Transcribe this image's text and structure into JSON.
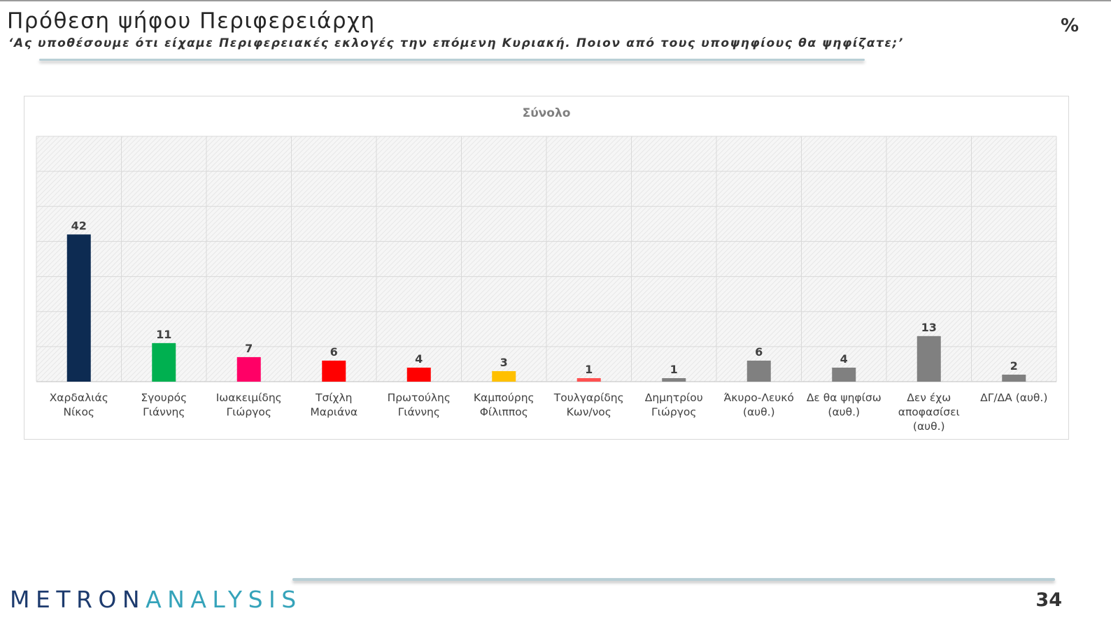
{
  "header": {
    "title": "Πρόθεση ψήφου Περιφερειάρχη",
    "subtitle": "‘Ας υποθέσουμε ότι είχαμε Περιφερειακές εκλογές την επόμενη Κυριακή. Ποιον από τους υποψηφίους θα ψηφίζατε;’",
    "unit": "%"
  },
  "footer": {
    "logo_part1": "METRON",
    "logo_part2": "ANALYSIS",
    "page_number": "34"
  },
  "chart_data": {
    "type": "bar",
    "title": "Σύνολο",
    "xlabel": "",
    "ylabel": "",
    "ylim": [
      0,
      70
    ],
    "grid": true,
    "legend": "none",
    "categories": [
      [
        "Χαρδαλιάς",
        "Νίκος"
      ],
      [
        "Σγουρός",
        "Γιάννης"
      ],
      [
        "Ιωακειμίδης",
        "Γιώργος"
      ],
      [
        "Τσίχλη",
        "Μαριάνα"
      ],
      [
        "Πρωτούλης",
        "Γιάννης"
      ],
      [
        "Καμπούρης",
        "Φίλιππος"
      ],
      [
        "Τουλγαρίδης",
        "Κων/νος"
      ],
      [
        "Δημητρίου",
        "Γιώργος"
      ],
      [
        "Άκυρο-Λευκό",
        "(αυθ.)"
      ],
      [
        "Δε θα ψηφίσω",
        "(αυθ.)"
      ],
      [
        "Δεν έχω",
        "αποφασίσει",
        "(αυθ.)"
      ],
      [
        "ΔΓ/ΔΑ (αυθ.)"
      ]
    ],
    "values": [
      42,
      11,
      7,
      6,
      4,
      3,
      1,
      1,
      6,
      4,
      13,
      2
    ],
    "colors": [
      "#0d2b52",
      "#00b050",
      "#ff0066",
      "#ff0000",
      "#ff0000",
      "#ffc000",
      "#ff5050",
      "#808080",
      "#808080",
      "#808080",
      "#808080",
      "#808080"
    ]
  }
}
